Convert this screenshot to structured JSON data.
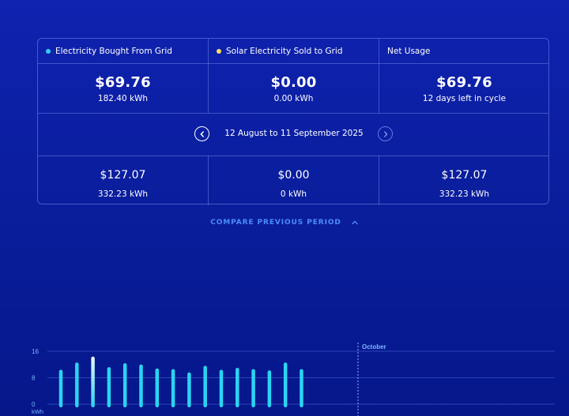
{
  "summary": {
    "headers": [
      {
        "label": "Electricity Bought From Grid",
        "dot_color": "#2bd4f3"
      },
      {
        "label": "Solar Electricity Sold to Grid",
        "dot_color": "#f4e06a"
      },
      {
        "label": "Net Usage"
      }
    ],
    "current": [
      {
        "amount": "$69.76",
        "detail": "182.40 kWh"
      },
      {
        "amount": "$0.00",
        "detail": "0.00 kWh"
      },
      {
        "amount": "$69.76",
        "detail": "12 days left in cycle"
      }
    ],
    "period_label": "12 August to 11 September 2025",
    "previous": [
      {
        "amount": "$127.07",
        "detail": "332.23 kWh"
      },
      {
        "amount": "$0.00",
        "detail": "0 kWh"
      },
      {
        "amount": "$127.07",
        "detail": "332.23 kWh"
      }
    ]
  },
  "compare_label": "COMPARE PREVIOUS PERIOD",
  "icons": {
    "prev": "chevron-left-icon",
    "next": "chevron-right-icon",
    "compare": "chevron-up-icon"
  },
  "chart_data": {
    "type": "bar",
    "y_ticks": [
      "16",
      "8",
      "0"
    ],
    "y_unit": "kWh",
    "ylim": [
      0,
      16
    ],
    "values": [
      10.4,
      12.6,
      14.4,
      11.2,
      12.4,
      12.0,
      10.8,
      10.6,
      9.6,
      11.6,
      10.4,
      11.0,
      10.6,
      10.2,
      12.6,
      10.6
    ],
    "highlight_index": 2,
    "marker_label": "October",
    "bar_color": "#2bd4f3",
    "highlight_color": "#e8f6ff"
  }
}
